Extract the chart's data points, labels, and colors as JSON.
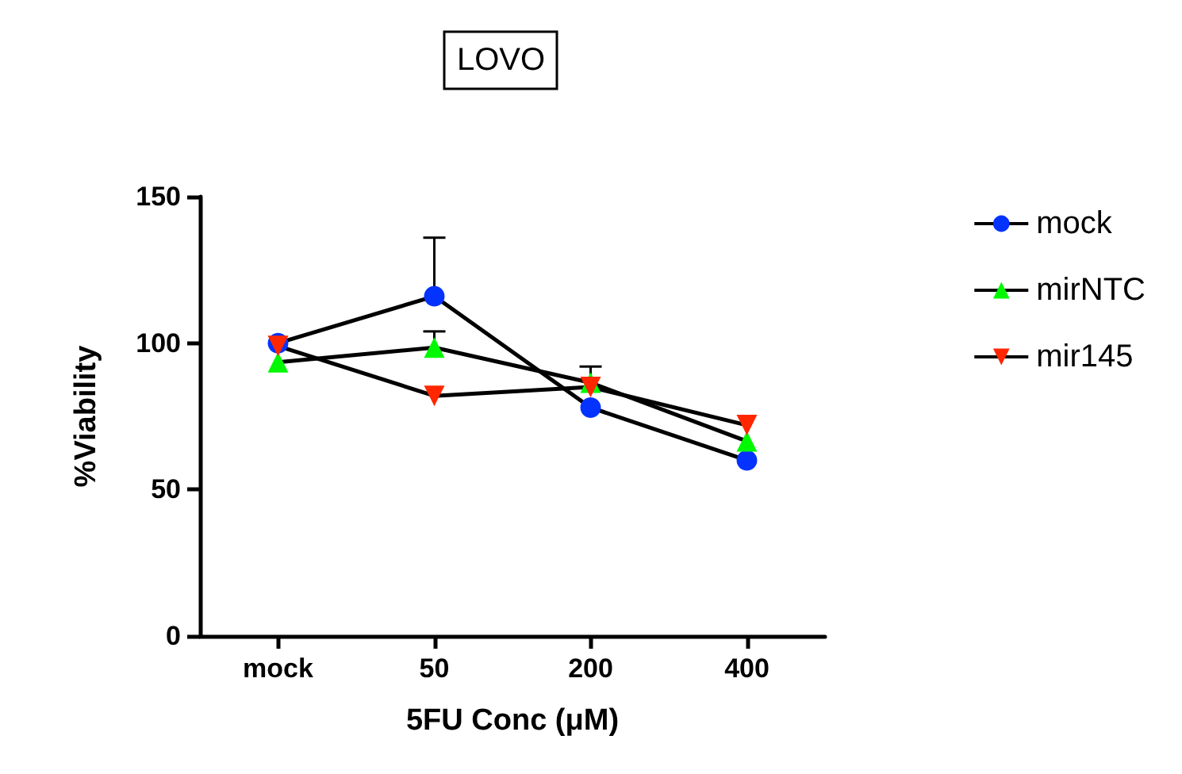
{
  "chart_data": {
    "type": "line",
    "title": "LOVO",
    "xlabel": "5FU Conc (μM)",
    "ylabel": "%Viability",
    "categories": [
      "mock",
      "50",
      "200",
      "400"
    ],
    "ylim": [
      0,
      150
    ],
    "yticks": [
      0,
      50,
      100,
      150
    ],
    "grid": false,
    "legend": "right",
    "line_style": "solid",
    "series": [
      {
        "name": "mock",
        "color": "#0433ff",
        "marker": "circle",
        "values": [
          100,
          116,
          78,
          60
        ],
        "errors": [
          null,
          [
            116,
            136
          ],
          null,
          null
        ]
      },
      {
        "name": "mirNTC",
        "color": "#00f900",
        "marker": "triangle",
        "values": [
          93.5,
          98.5,
          86.5,
          66.5
        ],
        "errors": [
          null,
          [
            98.5,
            104
          ],
          [
            86.5,
            92
          ],
          null
        ]
      },
      {
        "name": "mir145",
        "color": "#ff2600",
        "marker": "triangle-down",
        "values": [
          99,
          82,
          85,
          72
        ]
      }
    ]
  }
}
